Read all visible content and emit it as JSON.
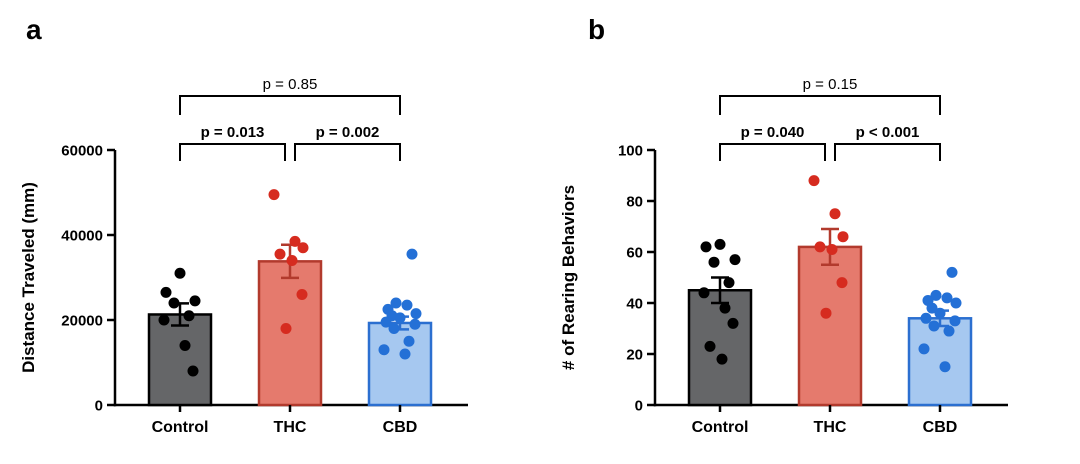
{
  "figure_bg": "#ffffff",
  "chart_data": [
    {
      "type": "bar",
      "panel_label": "a",
      "ylabel": "Distance Traveled (mm)",
      "ylim": [
        0,
        60000
      ],
      "yticks": [
        0,
        20000,
        40000,
        60000
      ],
      "categories": [
        "Control",
        "THC",
        "CBD"
      ],
      "groups": [
        {
          "name": "Control",
          "mean": 21300,
          "sem": 2600,
          "fill": "#656668",
          "edge": "#000000",
          "point_color": "#000000",
          "points": [
            31000,
            26500,
            24500,
            24000,
            21000,
            20000,
            14000,
            8000
          ]
        },
        {
          "name": "THC",
          "mean": 33800,
          "sem": 3900,
          "fill": "#e57a6d",
          "edge": "#b23a2d",
          "point_color": "#d62b1f",
          "points": [
            49500,
            38500,
            37000,
            35500,
            34000,
            26000,
            18000
          ]
        },
        {
          "name": "CBD",
          "mean": 19300,
          "sem": 1500,
          "fill": "#a6c8f0",
          "edge": "#2b6fd0",
          "point_color": "#2470d6",
          "points": [
            35500,
            24000,
            23500,
            22500,
            21500,
            21000,
            20500,
            19500,
            19000,
            18000,
            15000,
            13000,
            12000
          ]
        }
      ],
      "comparisons": [
        {
          "from": 0,
          "to": 1,
          "label": "p = 0.013",
          "level": "inner"
        },
        {
          "from": 1,
          "to": 2,
          "label": "p = 0.002",
          "level": "inner"
        },
        {
          "from": 0,
          "to": 2,
          "label": "p = 0.85",
          "level": "outer"
        }
      ]
    },
    {
      "type": "bar",
      "panel_label": "b",
      "ylabel": "# of Rearing Behaviors",
      "ylim": [
        0,
        100
      ],
      "yticks": [
        0,
        20,
        40,
        60,
        80,
        100
      ],
      "categories": [
        "Control",
        "THC",
        "CBD"
      ],
      "groups": [
        {
          "name": "Control",
          "mean": 45,
          "sem": 5,
          "fill": "#656668",
          "edge": "#000000",
          "point_color": "#000000",
          "points": [
            63,
            62,
            57,
            56,
            48,
            44,
            38,
            32,
            23,
            18
          ]
        },
        {
          "name": "THC",
          "mean": 62,
          "sem": 7,
          "fill": "#e57a6d",
          "edge": "#b23a2d",
          "point_color": "#d62b1f",
          "points": [
            88,
            75,
            66,
            62,
            61,
            48,
            36
          ]
        },
        {
          "name": "CBD",
          "mean": 34,
          "sem": 3,
          "fill": "#a6c8f0",
          "edge": "#2b6fd0",
          "point_color": "#2470d6",
          "points": [
            52,
            43,
            42,
            41,
            40,
            38,
            36,
            34,
            33,
            31,
            29,
            22,
            15
          ]
        }
      ],
      "comparisons": [
        {
          "from": 0,
          "to": 1,
          "label": "p = 0.040",
          "level": "inner"
        },
        {
          "from": 1,
          "to": 2,
          "label": "p < 0.001",
          "level": "inner"
        },
        {
          "from": 0,
          "to": 2,
          "label": "p = 0.15",
          "level": "outer"
        }
      ]
    }
  ]
}
